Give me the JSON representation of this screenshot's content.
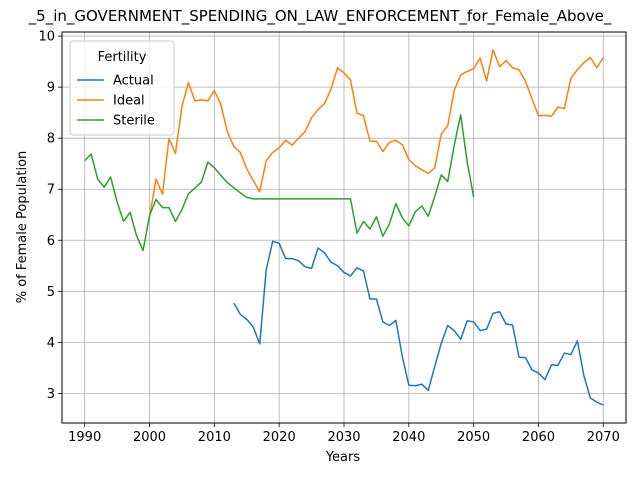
{
  "chart_data": {
    "type": "line",
    "title": "_5_in_GOVERNMENT_SPENDING_ON_LAW_ENFORCEMENT_for_Female_Above_",
    "xlabel": "Years",
    "ylabel": "% of Female Population",
    "xlim": [
      1986.5,
      2073.5
    ],
    "ylim": [
      2.42,
      10.08
    ],
    "xticks": [
      1990,
      2000,
      2010,
      2020,
      2030,
      2040,
      2050,
      2060,
      2070
    ],
    "yticks": [
      3,
      4,
      5,
      6,
      7,
      8,
      9,
      10
    ],
    "grid": true,
    "legend": {
      "title": "Fertility",
      "location": "upper-left"
    },
    "series": [
      {
        "name": "Actual",
        "color": "#1f77b4",
        "x_start": 2013,
        "values": [
          4.77,
          4.55,
          4.45,
          4.3,
          3.97,
          5.42,
          5.98,
          5.94,
          5.64,
          5.64,
          5.6,
          5.48,
          5.45,
          5.85,
          5.75,
          5.57,
          5.5,
          5.37,
          5.3,
          5.46,
          5.4,
          4.85,
          4.85,
          4.4,
          4.33,
          4.43,
          3.72,
          3.16,
          3.15,
          3.18,
          3.06,
          3.53,
          3.98,
          4.33,
          4.23,
          4.06,
          4.42,
          4.4,
          4.23,
          4.26,
          4.57,
          4.6,
          4.36,
          4.34,
          3.71,
          3.7,
          3.46,
          3.4,
          3.27,
          3.56,
          3.55,
          3.79,
          3.76,
          4.03,
          3.35,
          2.91,
          2.83,
          2.77
        ]
      },
      {
        "name": "Ideal",
        "color": "#ff7f0e",
        "x_start": 2000,
        "values": [
          6.45,
          7.2,
          6.9,
          7.99,
          7.7,
          8.62,
          9.09,
          8.73,
          8.75,
          8.73,
          8.93,
          8.66,
          8.13,
          7.84,
          7.72,
          7.4,
          7.17,
          6.95,
          7.56,
          7.72,
          7.81,
          7.96,
          7.86,
          8.0,
          8.13,
          8.4,
          8.56,
          8.68,
          8.96,
          9.38,
          9.28,
          9.14,
          8.49,
          8.44,
          7.94,
          7.94,
          7.74,
          7.92,
          7.96,
          7.87,
          7.58,
          7.46,
          7.38,
          7.31,
          7.42,
          8.08,
          8.24,
          8.94,
          9.24,
          9.31,
          9.36,
          9.57,
          9.12,
          9.73,
          9.4,
          9.52,
          9.38,
          9.34,
          9.11,
          8.77,
          8.44,
          8.45,
          8.43,
          8.61,
          8.58,
          9.18,
          9.34,
          9.48,
          9.58,
          9.38,
          9.58
        ]
      },
      {
        "name": "Sterile",
        "color": "#2ca02c",
        "x_start": 1990,
        "values": [
          7.56,
          7.69,
          7.2,
          7.04,
          7.24,
          6.75,
          6.37,
          6.55,
          6.09,
          5.8,
          6.48,
          6.8,
          6.64,
          6.64,
          6.37,
          6.6,
          6.91,
          7.02,
          7.14,
          7.53,
          7.42,
          7.27,
          7.13,
          7.03,
          6.93,
          6.84,
          6.81,
          6.81,
          6.81,
          6.81,
          6.81,
          6.81,
          6.81,
          6.81,
          6.81,
          6.81,
          6.81,
          6.81,
          6.81,
          6.81,
          6.81,
          6.81,
          6.14,
          6.37,
          6.22,
          6.46,
          6.08,
          6.32,
          6.72,
          6.44,
          6.28,
          6.56,
          6.67,
          6.47,
          6.86,
          7.28,
          7.15,
          7.86,
          8.46,
          7.53,
          6.85
        ]
      }
    ]
  }
}
